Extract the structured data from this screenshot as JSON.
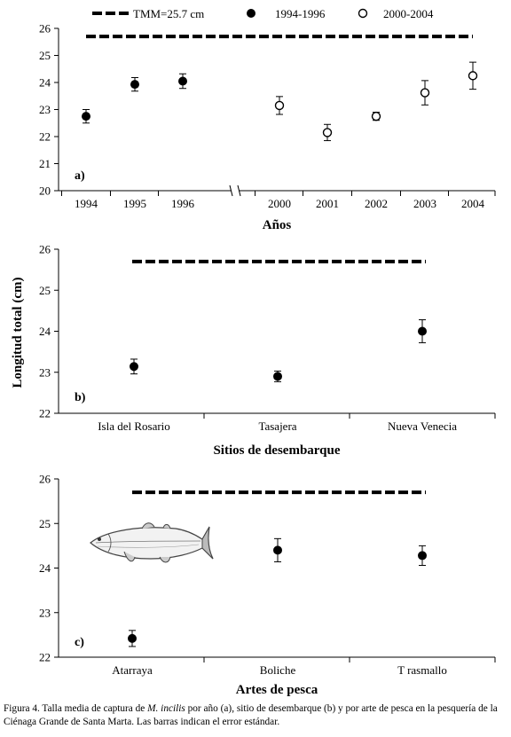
{
  "legend": [
    {
      "label": "TMM=25.7 cm",
      "marker": "dash"
    },
    {
      "label": "1994-1996",
      "marker": "filled-circle"
    },
    {
      "label": "2000-2004",
      "marker": "open-circle"
    }
  ],
  "shared_ylabel": "Longitud total (cm)",
  "chart_data": [
    {
      "type": "scatter",
      "panel": "a)",
      "xlabel": "Años",
      "ylim": [
        20,
        26
      ],
      "yticks": [
        20,
        21,
        22,
        23,
        24,
        25,
        26
      ],
      "axis_break": true,
      "categories": [
        "1994",
        "1995",
        "1996",
        "2000",
        "2001",
        "2002",
        "2003",
        "2004"
      ],
      "reference_line": {
        "label": "TMM=25.7 cm",
        "value": 25.7
      },
      "series": [
        {
          "name": "1994-1996",
          "marker": "filled",
          "x": [
            "1994",
            "1995",
            "1996"
          ],
          "values": [
            22.75,
            23.93,
            24.05
          ],
          "errors": [
            0.25,
            0.25,
            0.27
          ]
        },
        {
          "name": "2000-2004",
          "marker": "open",
          "x": [
            "2000",
            "2001",
            "2002",
            "2003",
            "2004"
          ],
          "values": [
            23.15,
            22.15,
            22.75,
            23.62,
            24.25
          ],
          "errors": [
            0.33,
            0.3,
            0.15,
            0.45,
            0.5
          ]
        }
      ]
    },
    {
      "type": "scatter",
      "panel": "b)",
      "xlabel": "Sitios de desembarque",
      "ylim": [
        22,
        26
      ],
      "yticks": [
        22,
        23,
        24,
        25,
        26
      ],
      "categories": [
        "Isla del Rosario",
        "Tasajera",
        "Nueva Venecia"
      ],
      "reference_line": {
        "label": "TMM=25.7 cm",
        "value": 25.7
      },
      "series": [
        {
          "marker": "filled",
          "values": [
            23.14,
            22.9,
            24.0
          ],
          "errors": [
            0.18,
            0.13,
            0.28
          ]
        }
      ]
    },
    {
      "type": "scatter",
      "panel": "c)",
      "xlabel": "Artes de pesca",
      "ylim": [
        22,
        26
      ],
      "yticks": [
        22,
        23,
        24,
        25,
        26
      ],
      "categories": [
        "Atarraya",
        "Boliche",
        "T rasmallo"
      ],
      "reference_line": {
        "label": "TMM=25.7 cm",
        "value": 25.7
      },
      "series": [
        {
          "marker": "filled",
          "values": [
            22.42,
            24.4,
            24.28
          ],
          "errors": [
            0.18,
            0.26,
            0.22
          ]
        }
      ]
    }
  ],
  "caption": {
    "prefix": "Figura 4. Talla media de captura de ",
    "species": "M. incilis",
    "suffix": " por año (a), sitio de desembarque (b) y por arte de pesca en la pesquería de la Ciénaga Grande de Santa Marta. Las barras indican el error estándar."
  }
}
